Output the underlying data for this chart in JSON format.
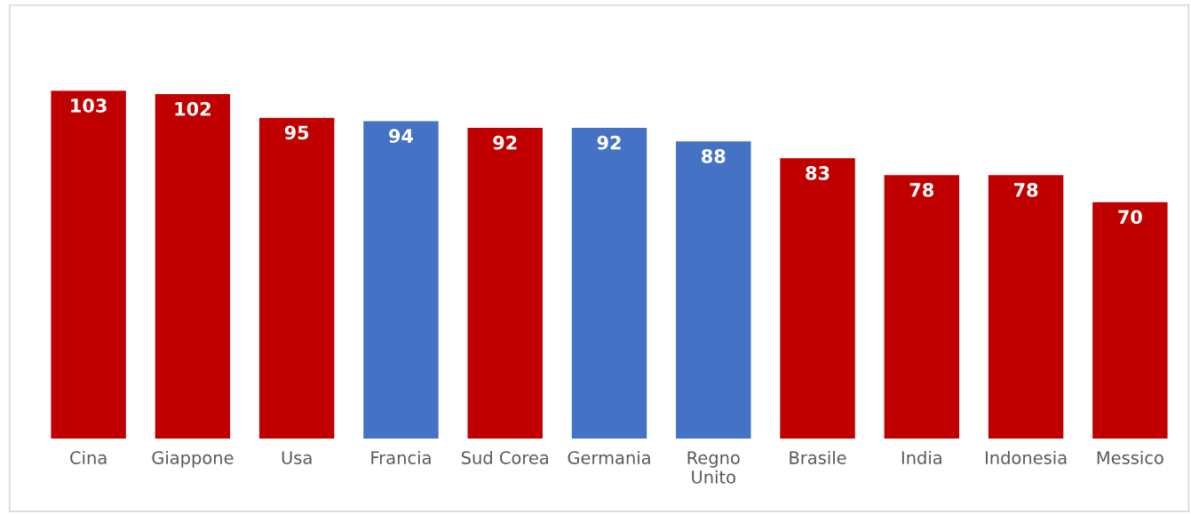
{
  "chart_data": {
    "type": "bar",
    "categories": [
      "Cina",
      "Giappone",
      "Usa",
      "Francia",
      "Sud Corea",
      "Germania",
      "Regno\nUnito",
      "Brasile",
      "India",
      "Indonesia",
      "Messico"
    ],
    "values": [
      103,
      102,
      95,
      94,
      92,
      92,
      88,
      83,
      78,
      78,
      70
    ],
    "colors": [
      "#c00000",
      "#c00000",
      "#c00000",
      "#4472c4",
      "#c00000",
      "#4472c4",
      "#4472c4",
      "#c00000",
      "#c00000",
      "#c00000",
      "#c00000"
    ],
    "data_labels": true,
    "grid": false,
    "legend": false
  }
}
